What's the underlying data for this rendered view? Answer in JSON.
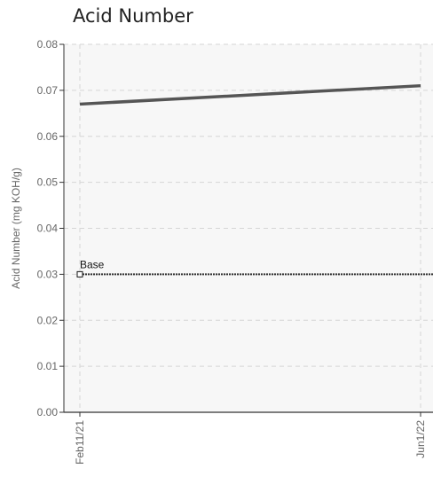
{
  "chart_data": {
    "type": "line",
    "title": "Acid Number",
    "ylabel": "Acid Number (mg KOH/g)",
    "xlabel": "",
    "categories": [
      "Feb11/21",
      "Jun1/22"
    ],
    "ylim": [
      0,
      0.08
    ],
    "yticks": [
      "0.00",
      "0.01",
      "0.02",
      "0.03",
      "0.04",
      "0.05",
      "0.06",
      "0.07",
      "0.08"
    ],
    "series": [
      {
        "values": [
          0.067,
          0.071
        ],
        "color": "#555555"
      }
    ],
    "baseline": {
      "label": "Base",
      "value": 0.03,
      "color": "#333333"
    },
    "grid": true,
    "plot_background": "#f7f7f7"
  }
}
